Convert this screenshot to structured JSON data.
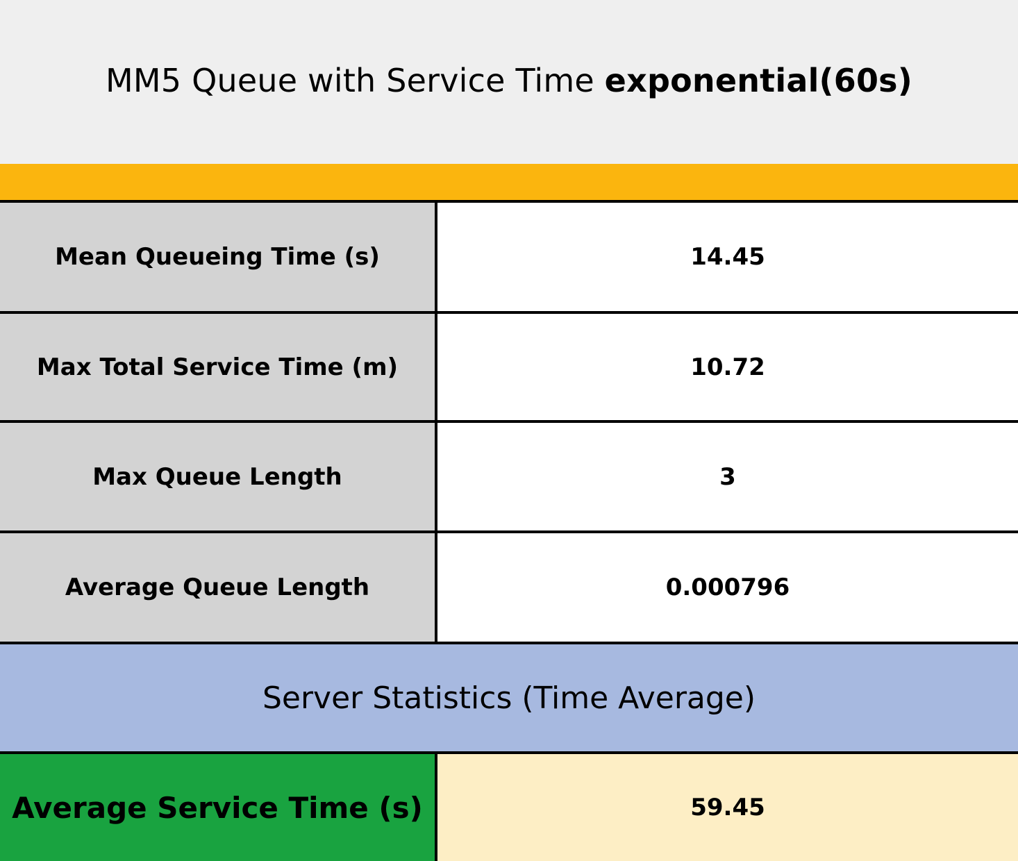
{
  "title": {
    "prefix": "MM5 Queue with Service Time ",
    "emphasis": "exponential(60s)"
  },
  "rows": [
    {
      "label": "Mean Queueing Time (s)",
      "value": "14.45"
    },
    {
      "label": "Max Total Service Time (m)",
      "value": "10.72"
    },
    {
      "label": "Max Queue Length",
      "value": "3"
    },
    {
      "label": "Average Queue Length",
      "value": "0.000796"
    }
  ],
  "section": {
    "title": "Server Statistics (Time Average)"
  },
  "server_rows": [
    {
      "label": "Average Service Time (s)",
      "value": "59.45"
    }
  ],
  "colors": {
    "title_band": "#efefef",
    "accent_bar": "#fbb50e",
    "label_cell": "#d3d3d3",
    "section_band": "#a7b9e0",
    "highlight_label": "#19a340",
    "highlight_value": "#fdeec5"
  }
}
